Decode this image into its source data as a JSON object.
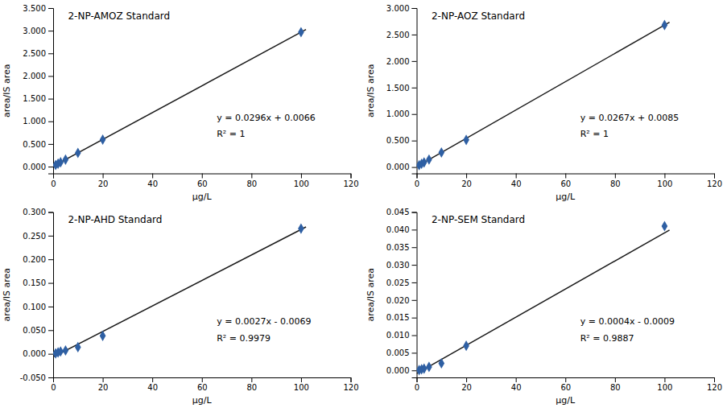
{
  "chart_data": [
    {
      "type": "scatter",
      "title": "2-NP-AMOZ Standard",
      "xlabel": "μg/L",
      "ylabel": "area/IS area",
      "grid": false,
      "xlim": [
        0,
        120
      ],
      "xticks": [
        0,
        20,
        40,
        60,
        80,
        100,
        120
      ],
      "ylim": [
        -0.15,
        3.5
      ],
      "yticks": [
        {
          "value": 0.0,
          "label": "0.000"
        },
        {
          "value": 0.5,
          "label": "0.500"
        },
        {
          "value": 1.0,
          "label": "1.000"
        },
        {
          "value": 1.5,
          "label": "1.500"
        },
        {
          "value": 2.0,
          "label": "2.000"
        },
        {
          "value": 2.5,
          "label": "2.500"
        },
        {
          "value": 3.0,
          "label": "3.000"
        },
        {
          "value": 3.5,
          "label": "3.500"
        }
      ],
      "series": [
        {
          "type": "line",
          "color": "#1a1a1a",
          "x": [
            0,
            102
          ],
          "values": [
            0.0066,
            3.0258
          ]
        },
        {
          "type": "scatter",
          "color": "#2E5FA3",
          "marker": "diamond",
          "x": [
            1,
            2,
            3,
            5,
            10,
            20,
            100
          ],
          "values": [
            0.0362,
            0.0658,
            0.0954,
            0.1542,
            0.303,
            0.5958,
            2.9666
          ]
        }
      ],
      "annotations": [
        "y = 0.0296x + 0.0066",
        "R² = 1"
      ]
    },
    {
      "type": "scatter",
      "title": "2-NP-AOZ Standard",
      "xlabel": "μg/L",
      "ylabel": "area/IS area",
      "grid": false,
      "xlim": [
        0,
        120
      ],
      "xticks": [
        0,
        20,
        40,
        60,
        80,
        100,
        120
      ],
      "ylim": [
        -0.12,
        3.0
      ],
      "yticks": [
        {
          "value": 0.0,
          "label": "0.000"
        },
        {
          "value": 0.5,
          "label": "0.500"
        },
        {
          "value": 1.0,
          "label": "1.000"
        },
        {
          "value": 1.5,
          "label": "1.500"
        },
        {
          "value": 2.0,
          "label": "2.000"
        },
        {
          "value": 2.5,
          "label": "2.500"
        },
        {
          "value": 3.0,
          "label": "3.000"
        }
      ],
      "series": [
        {
          "type": "line",
          "color": "#1a1a1a",
          "x": [
            0,
            102
          ],
          "values": [
            0.0085,
            2.7319
          ]
        },
        {
          "type": "scatter",
          "color": "#2E5FA3",
          "marker": "diamond",
          "x": [
            1,
            2,
            3,
            5,
            10,
            20,
            100
          ],
          "values": [
            0.0352,
            0.0619,
            0.088,
            0.1418,
            0.275,
            0.5125,
            2.6785
          ]
        }
      ],
      "annotations": [
        "y = 0.0267x + 0.0085",
        "R² = 1"
      ]
    },
    {
      "type": "scatter",
      "title": "2-NP-AHD Standard",
      "xlabel": "μg/L",
      "ylabel": "area/IS area",
      "grid": false,
      "xlim": [
        0,
        120
      ],
      "xticks": [
        0,
        20,
        40,
        60,
        80,
        100,
        120
      ],
      "ylim": [
        -0.05,
        0.3
      ],
      "yticks": [
        {
          "value": -0.05,
          "label": "-0.050"
        },
        {
          "value": 0.0,
          "label": "0.000"
        },
        {
          "value": 0.05,
          "label": "0.050"
        },
        {
          "value": 0.1,
          "label": "0.100"
        },
        {
          "value": 0.15,
          "label": "0.150"
        },
        {
          "value": 0.2,
          "label": "0.200"
        },
        {
          "value": 0.25,
          "label": "0.250"
        },
        {
          "value": 0.3,
          "label": "0.300"
        }
      ],
      "series": [
        {
          "type": "line",
          "color": "#1a1a1a",
          "x": [
            0,
            102
          ],
          "values": [
            -0.0069,
            0.2685
          ]
        },
        {
          "type": "scatter",
          "color": "#2E5FA3",
          "marker": "diamond",
          "x": [
            1,
            2,
            3,
            5,
            10,
            20,
            100
          ],
          "values": [
            0.001,
            0.003,
            0.005,
            0.007,
            0.014,
            0.038,
            0.265
          ]
        }
      ],
      "annotations": [
        "y = 0.0027x - 0.0069",
        "R² = 0.9979"
      ]
    },
    {
      "type": "scatter",
      "title": "2-NP-SEM Standard",
      "xlabel": "μg/L",
      "ylabel": "area/IS area",
      "grid": false,
      "xlim": [
        0,
        120
      ],
      "xticks": [
        0,
        20,
        40,
        60,
        80,
        100,
        120
      ],
      "ylim": [
        -0.002,
        0.045
      ],
      "yticks": [
        {
          "value": 0.0,
          "label": "0.000"
        },
        {
          "value": 0.005,
          "label": "0.005"
        },
        {
          "value": 0.01,
          "label": "0.010"
        },
        {
          "value": 0.015,
          "label": "0.015"
        },
        {
          "value": 0.02,
          "label": "0.020"
        },
        {
          "value": 0.025,
          "label": "0.025"
        },
        {
          "value": 0.03,
          "label": "0.030"
        },
        {
          "value": 0.035,
          "label": "0.035"
        },
        {
          "value": 0.04,
          "label": "0.040"
        },
        {
          "value": 0.045,
          "label": "0.045"
        }
      ],
      "series": [
        {
          "type": "line",
          "color": "#1a1a1a",
          "x": [
            0,
            102
          ],
          "values": [
            -0.0009,
            0.0399
          ]
        },
        {
          "type": "scatter",
          "color": "#2E5FA3",
          "marker": "diamond",
          "x": [
            1,
            2,
            3,
            5,
            10,
            20,
            100
          ],
          "values": [
            0.0001,
            0.0003,
            0.0005,
            0.001,
            0.002,
            0.007,
            0.041
          ]
        }
      ],
      "annotations": [
        "y = 0.0004x - 0.0009",
        "R² = 0.9887"
      ]
    }
  ]
}
